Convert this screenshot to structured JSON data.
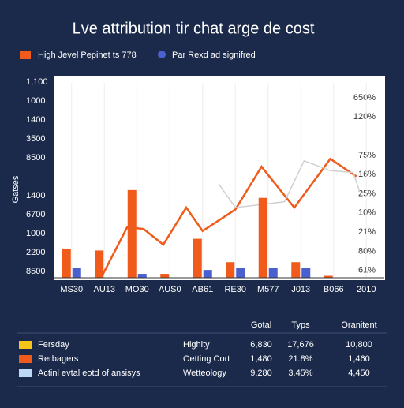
{
  "chart_data": {
    "type": "bar",
    "title": "Lve attribution tir chat arge de cost",
    "y_axis_label": "Gatses",
    "categories": [
      "MS30",
      "AU13",
      "MO30",
      "AUS0",
      "AB61",
      "RE30",
      "M577",
      "J013",
      "B066",
      "2010"
    ],
    "series": [
      {
        "name": "High Jevel Pepinet ts 778",
        "color": "#f05a1a",
        "values": [
          15,
          14,
          45,
          2,
          20,
          8,
          41,
          8,
          1,
          null
        ]
      },
      {
        "name": "Par Rexd ad signifred",
        "color": "#4a5fd0",
        "values": [
          5,
          null,
          2,
          null,
          4,
          5,
          5,
          5,
          null,
          null
        ]
      }
    ],
    "lines": [
      {
        "color": "#f05a1a",
        "x": [
          0.9,
          1.7,
          2.2,
          2.8,
          3.5,
          4,
          5,
          5.8,
          6.8,
          7.9,
          8.7
        ],
        "values": [
          0,
          26,
          25,
          17,
          36,
          24,
          35,
          57,
          36,
          61,
          52
        ]
      },
      {
        "color": "#d0d0d0",
        "x": [
          4.5,
          5,
          6.5,
          7.1,
          7.9,
          8.6,
          8.8
        ],
        "values": [
          48,
          36,
          39,
          60,
          55,
          54,
          44
        ]
      }
    ],
    "xlim": [
      -0.5,
      9.5
    ],
    "ylim": [
      0,
      100
    ],
    "y_labels": [
      "1,100",
      "1000",
      "1400",
      "3500",
      "8500",
      null,
      "1400",
      "6700",
      "1000",
      "2200",
      "8500"
    ],
    "y2_labels": [
      "650%",
      "120%",
      null,
      "75%",
      "16%",
      "25%",
      "10%",
      "21%",
      "80%",
      "61%"
    ],
    "grid": true
  },
  "table": {
    "columns": [
      "Gotal",
      "Typs",
      "Oranitent"
    ],
    "rows": [
      {
        "color": "#f5c518",
        "label": "Fersday",
        "name": "Highity",
        "cells": [
          "6,830",
          "17,676",
          "10,800"
        ]
      },
      {
        "color": "#f05a1a",
        "label": "Rerbagers",
        "name": "Oetting Cort",
        "cells": [
          "1,480",
          "21.8%",
          "1,460"
        ]
      },
      {
        "color": "#bcd8f5",
        "label": "Actinl evtal eotd of ansisys",
        "name": "Wetteology",
        "cells": [
          "9,280",
          "3.45%",
          "4,450"
        ]
      }
    ]
  }
}
